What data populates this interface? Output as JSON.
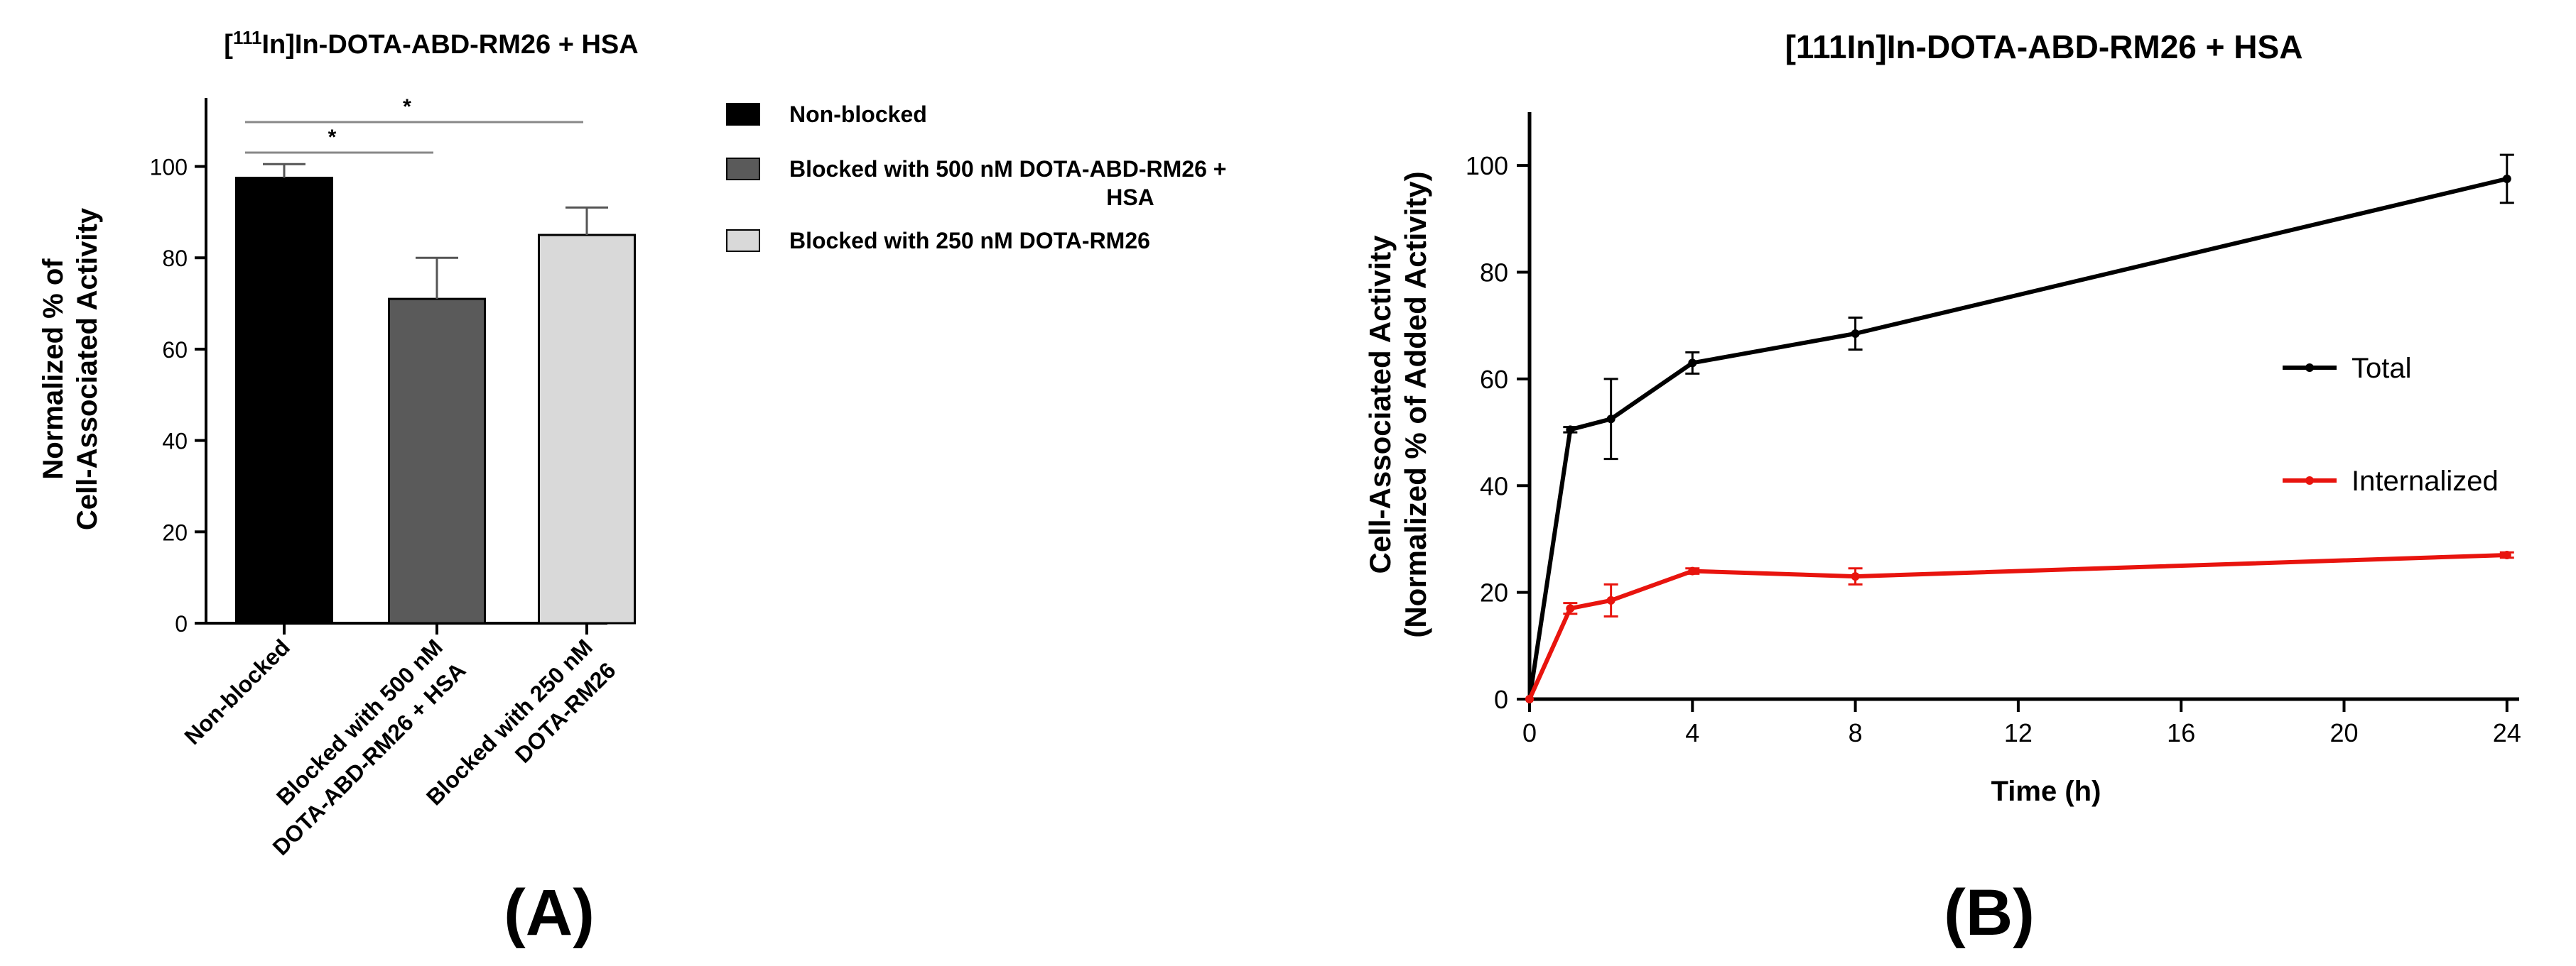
{
  "charts": [
    {
      "panel_label": "(A)",
      "chart_data": {
        "type": "bar",
        "title_superscript": "111",
        "title_prefix": "[",
        "title_rest": "In]In-DOTA-ABD-RM26 + HSA",
        "ylabel_line1": "Normalized % of",
        "ylabel_line2": "Cell-Associated Activity",
        "ylim": [
          0,
          115
        ],
        "yticks": [
          0,
          20,
          40,
          60,
          80,
          100
        ],
        "categories": [
          {
            "lines": [
              "Non-blocked"
            ]
          },
          {
            "lines": [
              "Blocked with 500 nM",
              "DOTA-ABD-RM26 + HSA"
            ]
          },
          {
            "lines": [
              "Blocked with 250 nM",
              "DOTA-RM26"
            ]
          }
        ],
        "values": [
          97.5,
          71,
          85
        ],
        "errors": [
          3,
          9,
          6
        ],
        "colors": [
          "#000000",
          "#5a5a5a",
          "#d9d9d9"
        ],
        "significance": [
          {
            "from": 0,
            "to": 1,
            "label": "*"
          },
          {
            "from": 0,
            "to": 2,
            "label": "*"
          }
        ],
        "legend": [
          {
            "lines": [
              "Non-blocked"
            ],
            "color": "#000000"
          },
          {
            "lines": [
              "Blocked with 500 nM DOTA-ABD-RM26 +",
              "HSA"
            ],
            "color": "#5a5a5a"
          },
          {
            "lines": [
              "Blocked with 250 nM DOTA-RM26"
            ],
            "color": "#d9d9d9"
          }
        ],
        "legend_placement": "right"
      }
    },
    {
      "panel_label": "(B)",
      "chart_data": {
        "type": "line",
        "title": "[111In]In-DOTA-ABD-RM26 + HSA",
        "xlabel": "Time (h)",
        "ylabel_line1": "Cell-Associated Activity",
        "ylabel_line2": "(Normalized % of Added Activity)",
        "xlim": [
          0,
          24.3
        ],
        "ylim": [
          0,
          110
        ],
        "xticks": [
          0,
          4,
          8,
          12,
          16,
          20,
          24
        ],
        "yticks": [
          0,
          20,
          40,
          60,
          80,
          100
        ],
        "series": [
          {
            "name": "Total",
            "color": "#000000",
            "x": [
              0,
              1,
              2,
              4,
              8,
              24
            ],
            "y": [
              0,
              50.5,
              52.5,
              63,
              68.5,
              97.5
            ],
            "errors": [
              0,
              0.5,
              7.5,
              2,
              3,
              4.5
            ]
          },
          {
            "name": "Internalized",
            "color": "#e8140e",
            "x": [
              0,
              1,
              2,
              4,
              8,
              24
            ],
            "y": [
              0,
              17,
              18.5,
              24,
              23,
              27
            ],
            "errors": [
              0,
              1,
              3,
              0.5,
              1.5,
              0.5
            ]
          }
        ],
        "legend_placement": "right"
      }
    }
  ]
}
